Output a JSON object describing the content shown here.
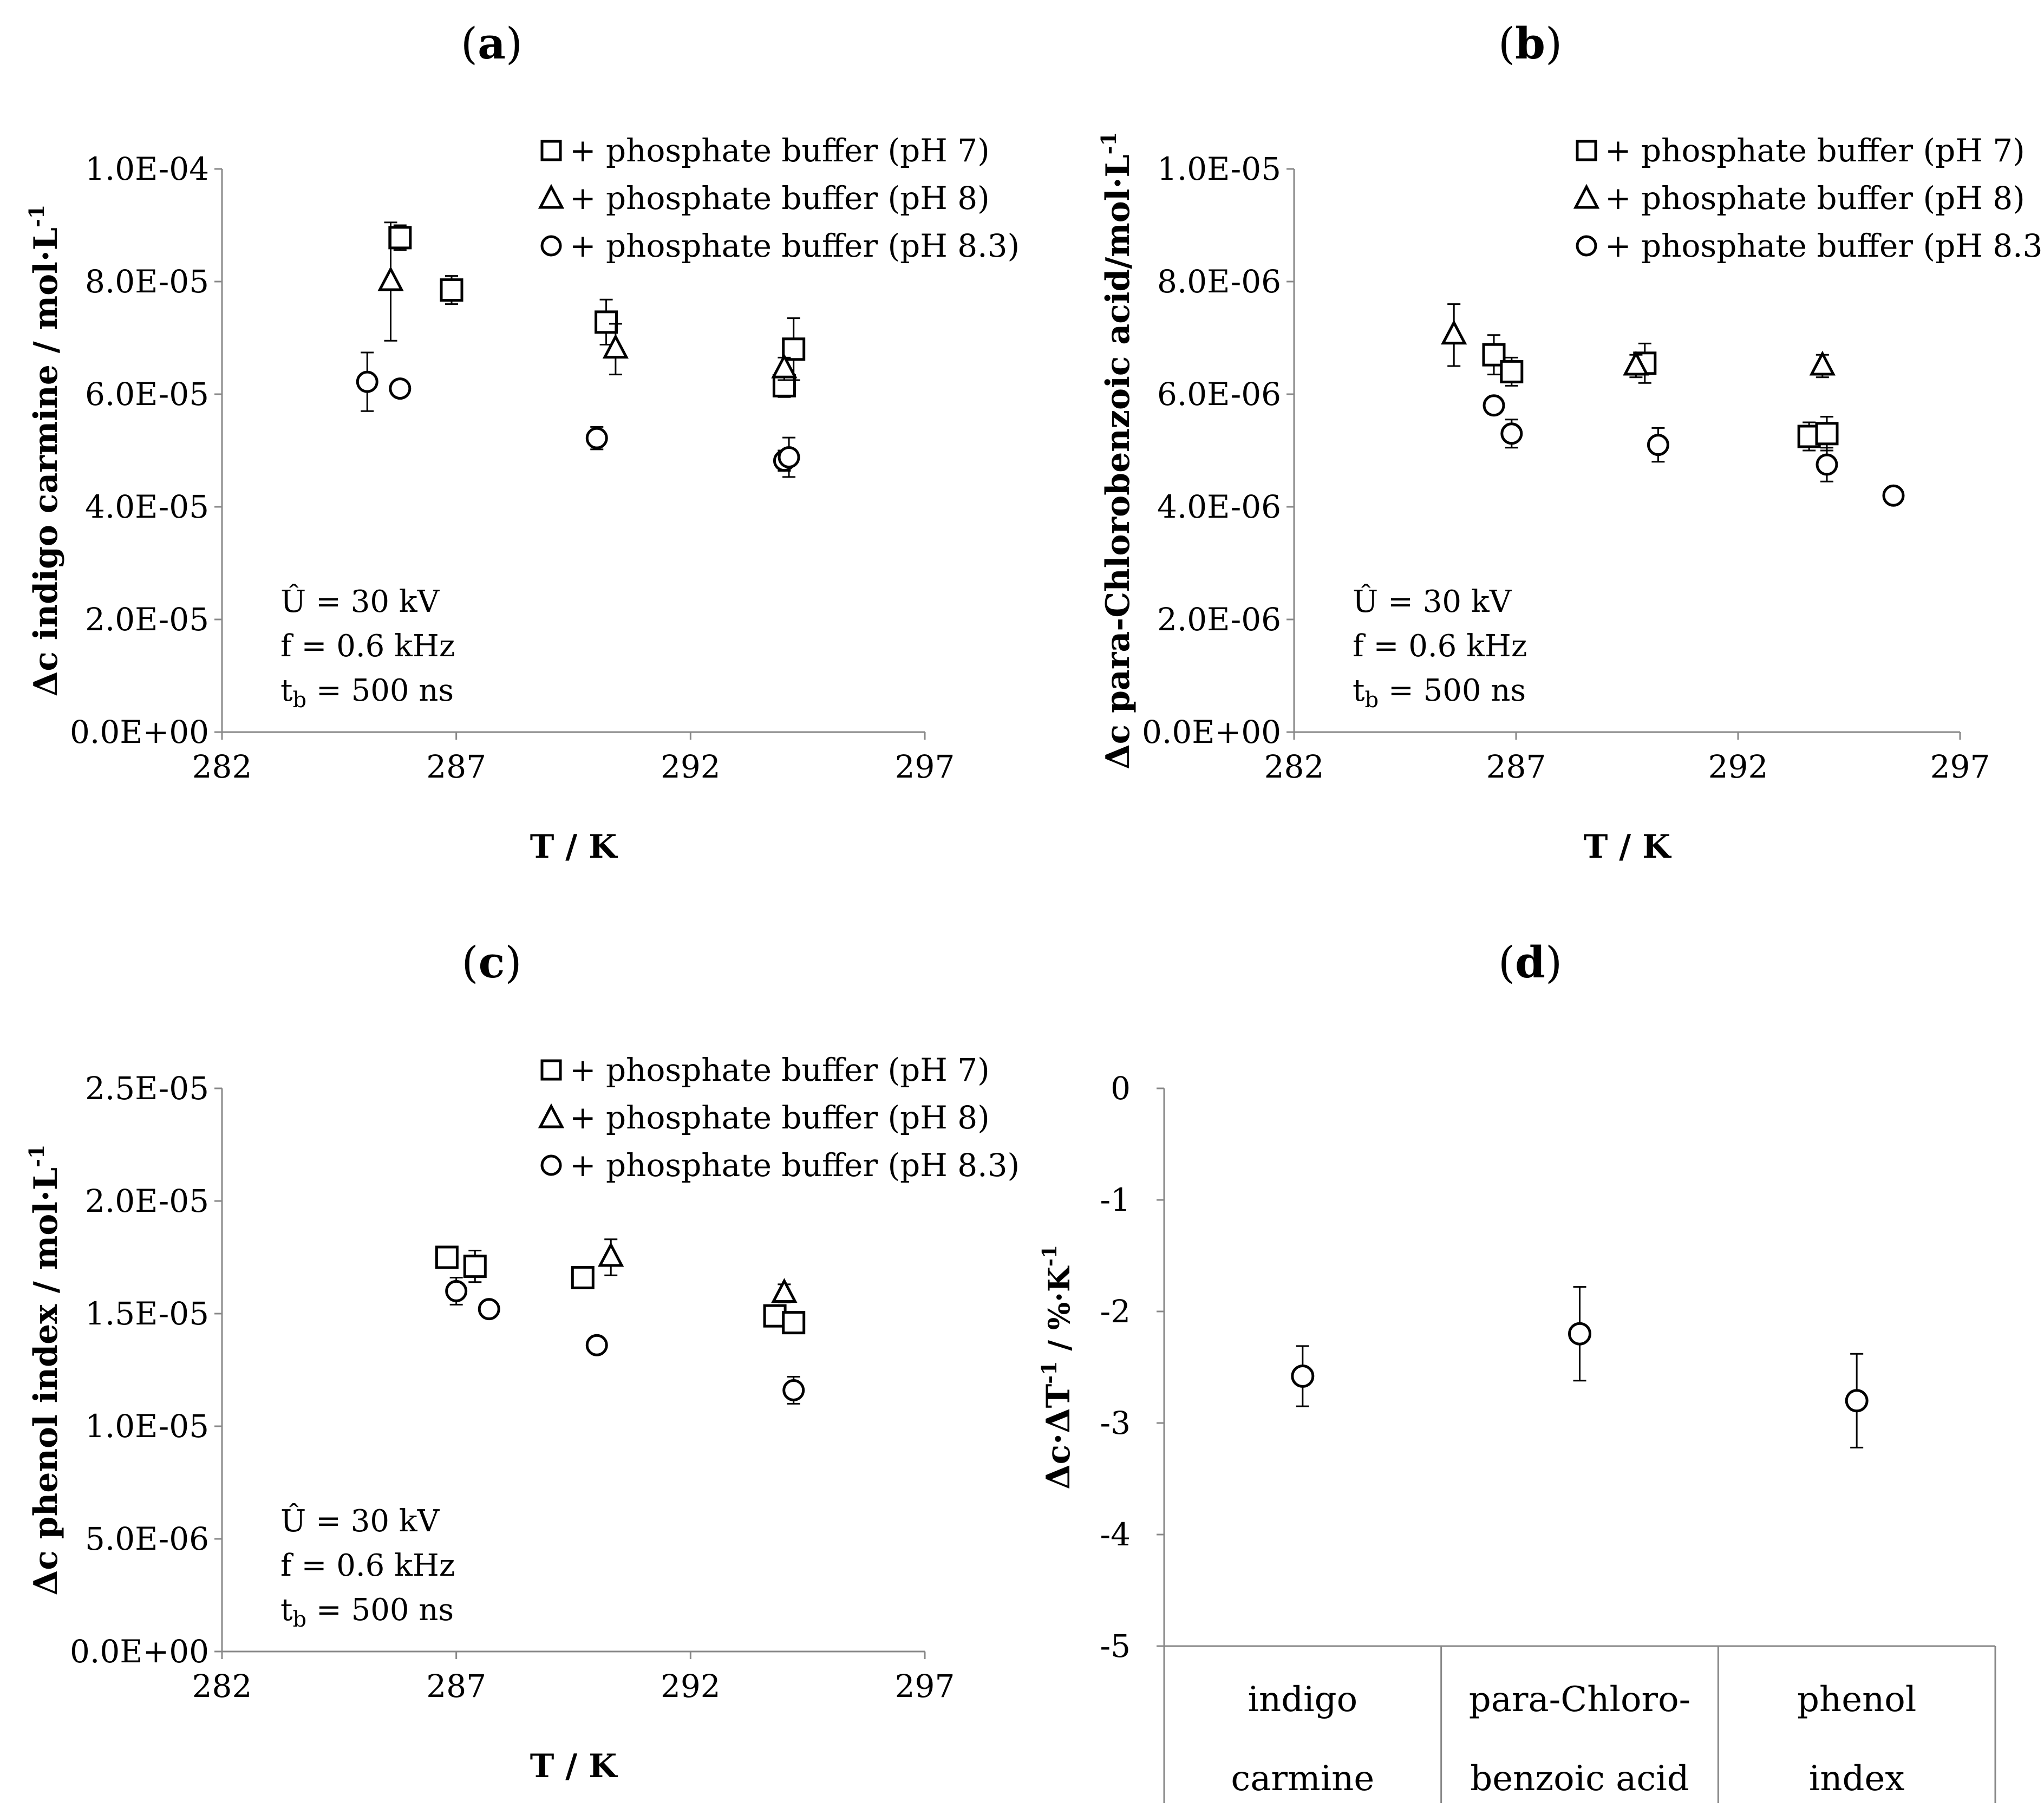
{
  "chart_data": [
    {
      "id": "a",
      "type": "scatter",
      "panel_label": "(a)",
      "label_parts": {
        "open": "(",
        "letter": "a",
        "close": ")"
      },
      "xlabel": "T / K",
      "ylabel": "Δc indigo carmine / mol·L",
      "ylabel_sup": "-1",
      "xlim": [
        282,
        297
      ],
      "ylim": [
        0,
        0.0001
      ],
      "xticks": [
        282,
        287,
        292,
        297
      ],
      "xtick_labels": [
        "282",
        "287",
        "292",
        "297"
      ],
      "yticks": [
        0,
        2e-05,
        4e-05,
        6e-05,
        8e-05,
        0.0001
      ],
      "ytick_labels": [
        "0.0E+00",
        "2.0E-05",
        "4.0E-05",
        "6.0E-05",
        "8.0E-05",
        "1.0E-04"
      ],
      "annotations": {
        "u": "Û = 30 kV",
        "f": "f = 0.6 kHz",
        "tb_base": "t",
        "tb_sub": "b",
        "tb_rest": " = 500 ns"
      },
      "legend_position": "top-right",
      "series": [
        {
          "name": "+ phosphate buffer (pH 7)",
          "marker": "square",
          "points": [
            {
              "x": 285.8,
              "y": 8.78e-05,
              "err": 2.2e-06
            },
            {
              "x": 286.9,
              "y": 7.85e-05,
              "err": 2.5e-06
            },
            {
              "x": 290.2,
              "y": 7.28e-05,
              "err": 4e-06
            },
            {
              "x": 294.0,
              "y": 6.15e-05,
              "err": 2e-06
            },
            {
              "x": 294.2,
              "y": 6.8e-05,
              "err": 5.5e-06
            }
          ]
        },
        {
          "name": "+ phosphate buffer (pH 8)",
          "marker": "triangle",
          "points": [
            {
              "x": 285.6,
              "y": 8e-05,
              "err": 1.05e-05
            },
            {
              "x": 290.4,
              "y": 6.8e-05,
              "err": 4.5e-06
            },
            {
              "x": 294.0,
              "y": 6.45e-05,
              "err": 2e-06
            }
          ]
        },
        {
          "name": "+ phosphate buffer (pH 8.3)",
          "marker": "circle",
          "points": [
            {
              "x": 285.1,
              "y": 6.22e-05,
              "err": 5.2e-06
            },
            {
              "x": 285.8,
              "y": 6.1e-05,
              "err": 1e-06
            },
            {
              "x": 290.0,
              "y": 5.22e-05,
              "err": 2e-06
            },
            {
              "x": 294.0,
              "y": 4.82e-05,
              "err": 1.8e-06
            },
            {
              "x": 294.1,
              "y": 4.88e-05,
              "err": 3.5e-06
            }
          ]
        }
      ]
    },
    {
      "id": "b",
      "type": "scatter",
      "panel_label": "(b)",
      "label_parts": {
        "open": "(",
        "letter": "b",
        "close": ")"
      },
      "xlabel": "T / K",
      "ylabel": "Δc para-Chlorobenzoic acid/mol·L",
      "ylabel_sup": "-1",
      "xlim": [
        282,
        297
      ],
      "ylim": [
        0,
        1e-05
      ],
      "xticks": [
        282,
        287,
        292,
        297
      ],
      "xtick_labels": [
        "282",
        "287",
        "292",
        "297"
      ],
      "yticks": [
        0,
        2e-06,
        4e-06,
        6e-06,
        8e-06,
        1e-05
      ],
      "ytick_labels": [
        "0.0E+00",
        "2.0E-06",
        "4.0E-06",
        "6.0E-06",
        "8.0E-06",
        "1.0E-05"
      ],
      "annotations": {
        "u": "Û = 30 kV",
        "f": "f = 0.6 kHz",
        "tb_base": "t",
        "tb_sub": "b",
        "tb_rest": " = 500 ns"
      },
      "legend_position": "top-right",
      "series": [
        {
          "name": "+ phosphate buffer (pH 7)",
          "marker": "square",
          "points": [
            {
              "x": 286.5,
              "y": 6.7e-06,
              "err": 3.5e-07
            },
            {
              "x": 286.9,
              "y": 6.4e-06,
              "err": 2.5e-07
            },
            {
              "x": 289.9,
              "y": 6.55e-06,
              "err": 3.5e-07
            },
            {
              "x": 293.6,
              "y": 5.25e-06,
              "err": 2.5e-07
            },
            {
              "x": 294.0,
              "y": 5.3e-06,
              "err": 3e-07
            }
          ]
        },
        {
          "name": "+ phosphate buffer (pH 8)",
          "marker": "triangle",
          "points": [
            {
              "x": 285.6,
              "y": 7.05e-06,
              "err": 5.5e-07
            },
            {
              "x": 289.7,
              "y": 6.5e-06,
              "err": 2e-07
            },
            {
              "x": 293.9,
              "y": 6.5e-06,
              "err": 2e-07
            }
          ]
        },
        {
          "name": "+ phosphate buffer (pH 8.3)",
          "marker": "circle",
          "points": [
            {
              "x": 286.5,
              "y": 5.8e-06,
              "err": 1.5e-07
            },
            {
              "x": 286.9,
              "y": 5.3e-06,
              "err": 2.5e-07
            },
            {
              "x": 290.2,
              "y": 5.1e-06,
              "err": 3e-07
            },
            {
              "x": 294.0,
              "y": 4.75e-06,
              "err": 3e-07
            },
            {
              "x": 295.5,
              "y": 4.2e-06,
              "err": 1e-07
            }
          ]
        }
      ]
    },
    {
      "id": "c",
      "type": "scatter",
      "panel_label": "(c)",
      "label_parts": {
        "open": "(",
        "letter": "c",
        "close": ")"
      },
      "xlabel": "T / K",
      "ylabel": "Δc phenol index / mol·L",
      "ylabel_sup": "-1",
      "xlim": [
        282,
        297
      ],
      "ylim": [
        0,
        2.5e-05
      ],
      "xticks": [
        282,
        287,
        292,
        297
      ],
      "xtick_labels": [
        "282",
        "287",
        "292",
        "297"
      ],
      "yticks": [
        0,
        5e-06,
        1e-05,
        1.5e-05,
        2e-05,
        2.5e-05
      ],
      "ytick_labels": [
        "0.0E+00",
        "5.0E-06",
        "1.0E-05",
        "1.5E-05",
        "2.0E-05",
        "2.5E-05"
      ],
      "annotations": {
        "u": "Û = 30 kV",
        "f": "f = 0.6 kHz",
        "tb_base": "t",
        "tb_sub": "b",
        "tb_rest": " = 500 ns"
      },
      "legend_position": "top-right",
      "series": [
        {
          "name": "+ phosphate buffer (pH 7)",
          "marker": "square",
          "points": [
            {
              "x": 286.8,
              "y": 1.75e-05,
              "err": 3e-07
            },
            {
              "x": 287.4,
              "y": 1.71e-05,
              "err": 7e-07
            },
            {
              "x": 289.7,
              "y": 1.66e-05,
              "err": 3e-07
            },
            {
              "x": 293.8,
              "y": 1.49e-05,
              "err": 4e-07
            },
            {
              "x": 294.2,
              "y": 1.46e-05,
              "err": 3e-07
            }
          ]
        },
        {
          "name": "+ phosphate buffer (pH 8)",
          "marker": "triangle",
          "points": [
            {
              "x": 290.3,
              "y": 1.75e-05,
              "err": 8e-07
            },
            {
              "x": 294.0,
              "y": 1.59e-05,
              "err": 4e-07
            }
          ]
        },
        {
          "name": "+ phosphate buffer (pH 8.3)",
          "marker": "circle",
          "points": [
            {
              "x": 287.0,
              "y": 1.6e-05,
              "err": 6e-07
            },
            {
              "x": 287.7,
              "y": 1.52e-05,
              "err": 2e-07
            },
            {
              "x": 290.0,
              "y": 1.36e-05,
              "err": 2e-07
            },
            {
              "x": 294.2,
              "y": 1.16e-05,
              "err": 6e-07
            }
          ]
        }
      ]
    },
    {
      "id": "d",
      "type": "scatter",
      "panel_label": "(d)",
      "label_parts": {
        "open": "(",
        "letter": "d",
        "close": ")"
      },
      "ylabel": "Δc·ΔT",
      "ylabel_sup": "-1",
      "ylabel_unit": " / %·K",
      "ylabel_unit_sup": "-1",
      "ylim": [
        -5,
        0
      ],
      "yticks": [
        0,
        -1,
        -2,
        -3,
        -4,
        -5
      ],
      "ytick_labels": [
        "0",
        "-1",
        "-2",
        "-3",
        "-4",
        "-5"
      ],
      "categories": [
        {
          "line1": "indigo",
          "line2": "carmine"
        },
        {
          "line1": "para-Chloro-",
          "line2": "benzoic acid"
        },
        {
          "line1": "phenol",
          "line2": "index"
        }
      ],
      "values": [
        -2.58,
        -2.2,
        -2.8
      ],
      "errors": [
        0.27,
        0.42,
        0.42
      ]
    }
  ]
}
